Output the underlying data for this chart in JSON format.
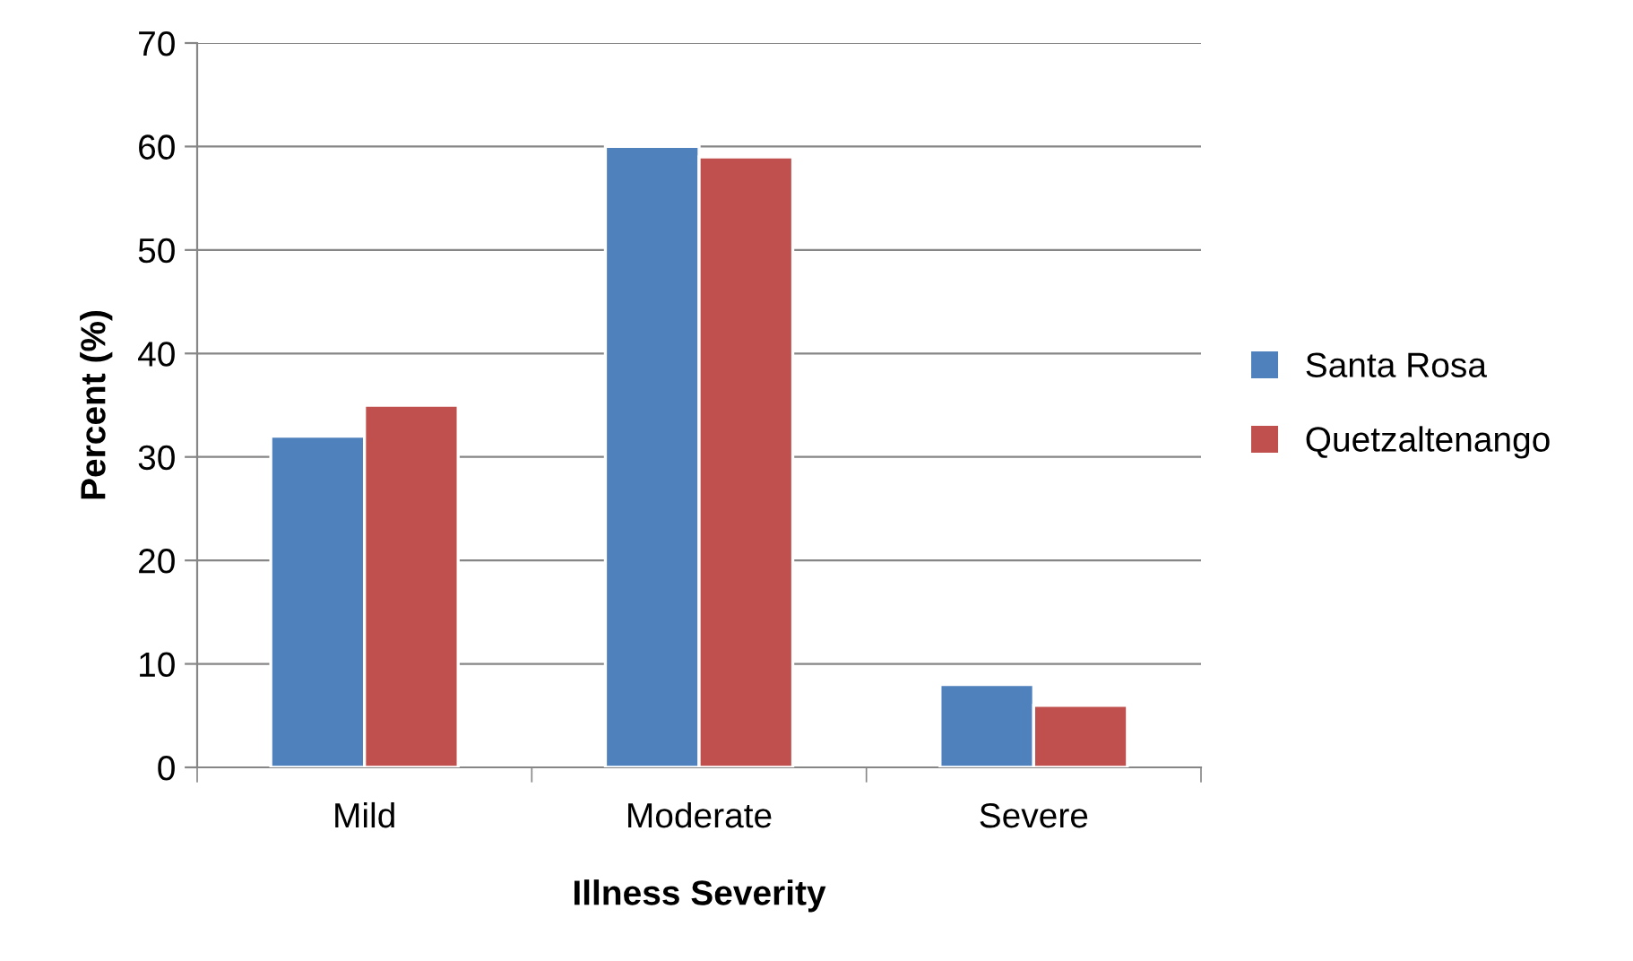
{
  "chart_data": {
    "type": "bar",
    "xlabel": "Illness Severity",
    "ylabel": "Percent (%)",
    "categories": [
      "Mild",
      "Moderate",
      "Severe"
    ],
    "series": [
      {
        "name": "Santa Rosa",
        "color": "#4f81bd",
        "values": [
          32,
          60,
          8
        ]
      },
      {
        "name": "Quetzaltenango",
        "color": "#c0504d",
        "values": [
          35,
          59,
          6
        ]
      }
    ],
    "ylim": [
      0,
      70
    ],
    "yticks": [
      0,
      10,
      20,
      30,
      40,
      50,
      60,
      70
    ],
    "grid": "y",
    "legend": "right"
  }
}
